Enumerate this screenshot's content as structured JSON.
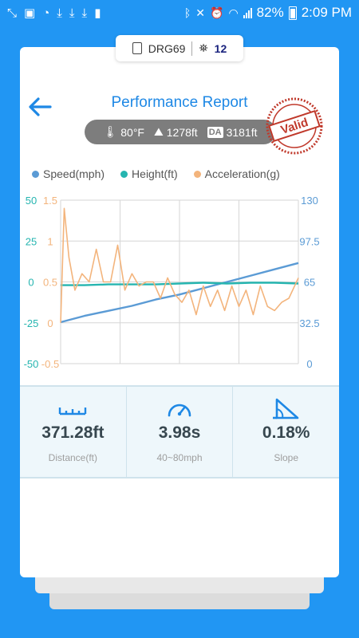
{
  "status_bar": {
    "battery": "82%",
    "time": "2:09 PM",
    "left_icons": [
      "fullscreen-icon",
      "image-icon",
      "chat-icon",
      "download-icon",
      "download-icon",
      "download-icon",
      "sd-card-icon"
    ],
    "right_icons": [
      "bluetooth-icon",
      "mute-icon",
      "alarm-icon",
      "wifi-icon",
      "signal-icon",
      "battery-icon"
    ]
  },
  "device": {
    "name": "DRG69",
    "satellites": "12"
  },
  "header": {
    "title": "Performance Report"
  },
  "conditions": {
    "temperature": "80°F",
    "altitude": "1278ft",
    "da_label": "DA",
    "density_altitude": "3181ft"
  },
  "stamp": {
    "text": "Valid"
  },
  "legend": [
    {
      "label": "Speed(mph)",
      "color": "#5b9bd5"
    },
    {
      "label": "Height(ft)",
      "color": "#26b5b0"
    },
    {
      "label": "Acceleration(g)",
      "color": "#f3b47c"
    }
  ],
  "chart_data": {
    "type": "line",
    "axes": {
      "left_outer": {
        "ticks": [
          "50",
          "25",
          "0",
          "-25",
          "-50"
        ],
        "range": [
          -50,
          50
        ]
      },
      "left_inner": {
        "ticks": [
          "1.5",
          "1",
          "0.5",
          "0",
          "-0.5"
        ],
        "range": [
          -0.5,
          1.5
        ]
      },
      "right": {
        "ticks": [
          "130",
          "97.5",
          "65",
          "32.5",
          "0"
        ],
        "range": [
          0,
          130
        ]
      }
    },
    "series": [
      {
        "name": "Speed(mph)",
        "axis": "right",
        "color": "#5b9bd5",
        "x": [
          0,
          0.1,
          0.2,
          0.3,
          0.4,
          0.5,
          0.6,
          0.7,
          0.8,
          0.9,
          1.0
        ],
        "values": [
          33,
          38,
          42,
          46,
          51,
          55,
          60,
          65,
          70,
          75,
          80
        ]
      },
      {
        "name": "Height(ft)",
        "axis": "left_outer",
        "color": "#26b5b0",
        "x": [
          0,
          0.1,
          0.2,
          0.3,
          0.4,
          0.5,
          0.6,
          0.7,
          0.8,
          0.9,
          1.0
        ],
        "values": [
          -2,
          -2,
          -1.5,
          -1.5,
          -1.5,
          -1,
          -0.5,
          -1,
          -0.5,
          -0.5,
          -1
        ]
      },
      {
        "name": "Acceleration(g)",
        "axis": "left_inner",
        "color": "#f3b47c",
        "x": [
          0,
          0.015,
          0.035,
          0.06,
          0.09,
          0.12,
          0.15,
          0.18,
          0.21,
          0.24,
          0.27,
          0.3,
          0.33,
          0.36,
          0.39,
          0.42,
          0.45,
          0.48,
          0.51,
          0.54,
          0.57,
          0.6,
          0.63,
          0.66,
          0.69,
          0.72,
          0.75,
          0.78,
          0.81,
          0.84,
          0.87,
          0.9,
          0.93,
          0.96,
          1.0
        ],
        "values": [
          0,
          1.4,
          0.8,
          0.4,
          0.6,
          0.5,
          0.9,
          0.5,
          0.5,
          0.95,
          0.4,
          0.6,
          0.45,
          0.5,
          0.5,
          0.3,
          0.55,
          0.35,
          0.25,
          0.4,
          0.1,
          0.45,
          0.2,
          0.4,
          0.15,
          0.45,
          0.2,
          0.4,
          0.1,
          0.45,
          0.2,
          0.15,
          0.25,
          0.3,
          0.55
        ]
      }
    ],
    "grid": true
  },
  "stats": [
    {
      "icon": "ruler-icon",
      "value": "371.28ft",
      "label": "Distance(ft)"
    },
    {
      "icon": "speedometer-icon",
      "value": "3.98s",
      "label": "40~80mph"
    },
    {
      "icon": "slope-icon",
      "value": "0.18%",
      "label": "Slope"
    }
  ],
  "colors": {
    "background": "#2196f3",
    "accent": "#1e88e5",
    "stamp": "#c0392b",
    "stats_bg": "#eef7fb"
  }
}
